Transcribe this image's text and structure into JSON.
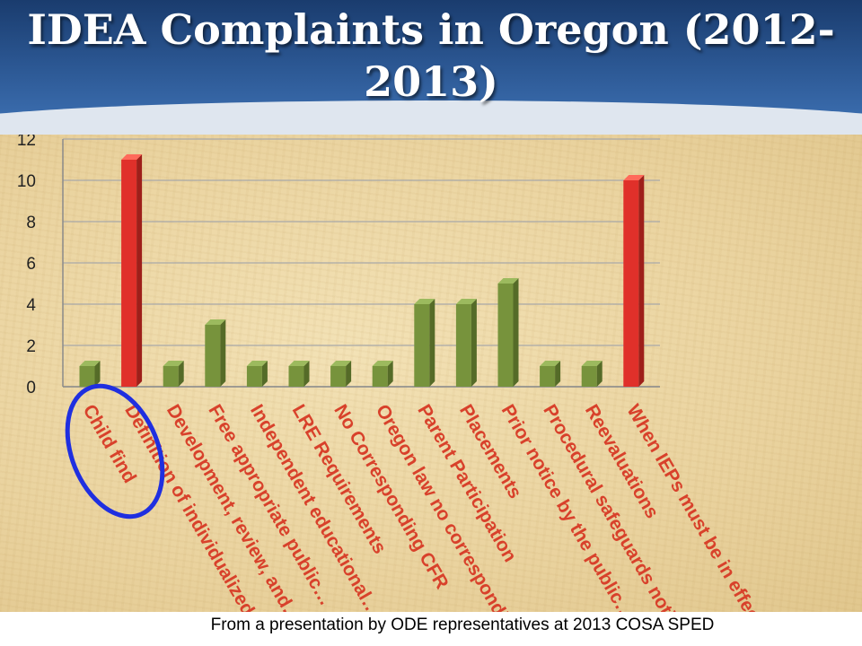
{
  "slide": {
    "title_line1": "IDEA Complaints in Oregon (2012-",
    "title_line2": "2013)",
    "caption": "From a presentation by ODE representatives at 2013 COSA SPED"
  },
  "colors": {
    "green_bar": "#77933c",
    "red_bar": "#e0302a",
    "highlight_ellipse": "#1f2fe0",
    "label_red": "#d8412b"
  },
  "chart_data": {
    "type": "bar",
    "title": "",
    "xlabel": "",
    "ylabel": "",
    "ylim": [
      0,
      12
    ],
    "yticks": [
      0,
      2,
      4,
      6,
      8,
      10,
      12
    ],
    "grid": true,
    "legend": "none",
    "categories": [
      "Child find",
      "Definition of individualized…",
      "Development, review, and…",
      "Free appropriate public…",
      "Independent educational…",
      "LRE Requirements",
      "No Corresponding CFR",
      "Oregon law no corresponding…",
      "Parent Participation",
      "Placements",
      "Prior notice by the public…",
      "Procedural safeguards notice",
      "Reevaluations",
      "When IEPs must be in effect"
    ],
    "values": [
      1,
      11,
      1,
      3,
      1,
      1,
      1,
      1,
      4,
      4,
      5,
      1,
      1,
      10
    ],
    "bar_colors": [
      "green",
      "red",
      "green",
      "green",
      "green",
      "green",
      "green",
      "green",
      "green",
      "green",
      "green",
      "green",
      "green",
      "red"
    ],
    "highlighted_category": "Child find"
  }
}
